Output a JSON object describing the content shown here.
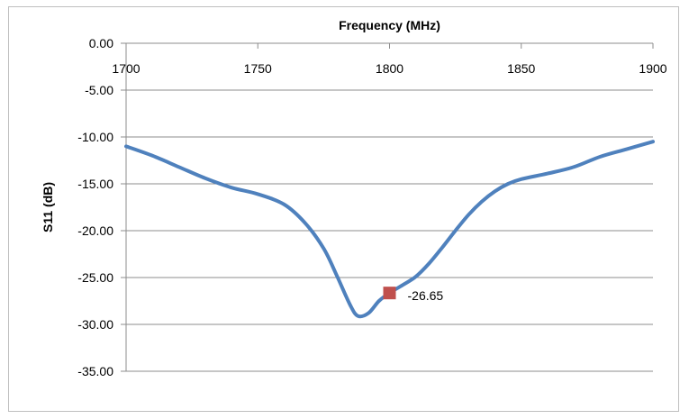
{
  "chart_data": {
    "type": "line",
    "title": "",
    "xlabel": "Frequency (MHz)",
    "ylabel": "S11 (dB)",
    "xlim": [
      1700,
      1900
    ],
    "ylim": [
      -35,
      0
    ],
    "x_ticks": [
      "1700",
      "1750",
      "1800",
      "1850",
      "1900"
    ],
    "y_ticks": [
      "0.00",
      "-5.00",
      "-10.00",
      "-15.00",
      "-20.00",
      "-25.00",
      "-30.00",
      "-35.00"
    ],
    "x_axis_position": "top",
    "grid": "horizontal",
    "legend": "none",
    "series": [
      {
        "color": "#4f81bd",
        "x": [
          1700,
          1710,
          1720,
          1730,
          1740,
          1750,
          1760,
          1768,
          1775,
          1780,
          1785,
          1788,
          1792,
          1796,
          1800,
          1805,
          1810,
          1815,
          1820,
          1825,
          1830,
          1835,
          1840,
          1845,
          1850,
          1860,
          1870,
          1880,
          1890,
          1900
        ],
        "y": [
          -11.0,
          -12.0,
          -13.2,
          -14.4,
          -15.4,
          -16.1,
          -17.2,
          -19.2,
          -21.9,
          -24.8,
          -27.9,
          -29.1,
          -28.8,
          -27.5,
          -26.65,
          -25.8,
          -24.9,
          -23.5,
          -21.8,
          -20.0,
          -18.3,
          -16.9,
          -15.8,
          -15.0,
          -14.5,
          -13.9,
          -13.2,
          -12.1,
          -11.3,
          -10.5
        ]
      }
    ],
    "highlight_point": {
      "x": 1800,
      "y": -26.65,
      "label": "-26.65",
      "color": "#c0504d"
    }
  }
}
